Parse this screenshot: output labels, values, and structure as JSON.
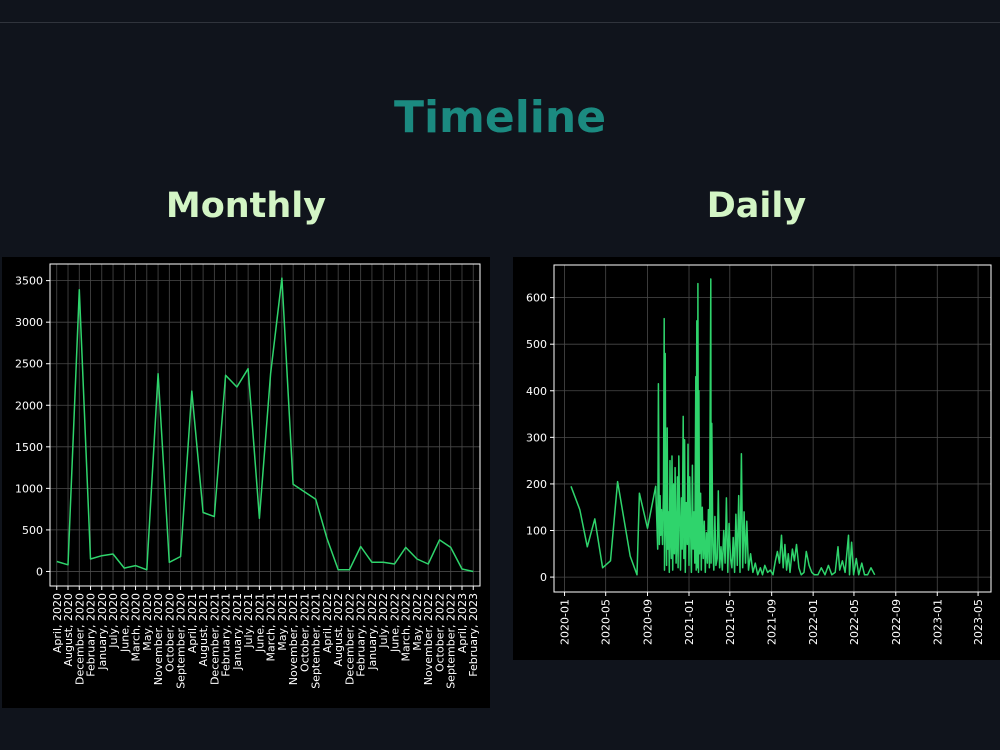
{
  "page": {
    "title": "Timeline",
    "colors": {
      "background": "#10141c",
      "title": "#1b8a80",
      "subtitle": "#d3f5c5",
      "line": "#2fd46c",
      "panel": "#000000"
    }
  },
  "monthly": {
    "title": "Monthly"
  },
  "daily": {
    "title": "Daily"
  },
  "chart_data": [
    {
      "type": "line",
      "categories": [
        "April, 2020",
        "August, 2020",
        "December, 2020",
        "February, 2020",
        "January, 2020",
        "July, 2020",
        "June, 2020",
        "March, 2020",
        "May, 2020",
        "November, 2020",
        "October, 2020",
        "September, 2020",
        "April, 2021",
        "August, 2021",
        "December, 2021",
        "February, 2021",
        "January, 2021",
        "July, 2021",
        "June, 2021",
        "March, 2021",
        "May, 2021",
        "November, 2021",
        "October, 2021",
        "September, 2021",
        "April, 2022",
        "August, 2022",
        "December, 2022",
        "February, 2022",
        "January, 2022",
        "July, 2022",
        "June, 2022",
        "March, 2022",
        "May, 2022",
        "November, 2022",
        "October, 2022",
        "September, 2022",
        "April, 2023",
        "February, 2023"
      ],
      "values": [
        120,
        80,
        3390,
        150,
        190,
        210,
        40,
        70,
        20,
        2380,
        110,
        180,
        2170,
        710,
        660,
        2360,
        2220,
        2440,
        640,
        2380,
        3530,
        1050,
        960,
        870,
        400,
        20,
        20,
        300,
        110,
        110,
        90,
        290,
        150,
        90,
        380,
        290,
        30,
        0
      ],
      "yticks": [
        0,
        500,
        1000,
        1500,
        2000,
        2500,
        3000,
        3500
      ],
      "ylim": [
        -175,
        3700
      ],
      "grid": true
    },
    {
      "type": "line",
      "xticks": [
        "2020-01",
        "2020-05",
        "2020-09",
        "2021-01",
        "2021-05",
        "2021-09",
        "2022-01",
        "2022-05",
        "2022-09",
        "2023-01",
        "2023-05"
      ],
      "yticks": [
        0,
        100,
        200,
        300,
        400,
        500,
        600
      ],
      "xlim": [
        "2019-12-01",
        "2023-06-08"
      ],
      "ylim": [
        -32,
        670
      ],
      "grid": true,
      "points": [
        [
          "2020-01-20",
          195
        ],
        [
          "2020-02-15",
          145
        ],
        [
          "2020-03-08",
          65
        ],
        [
          "2020-03-30",
          125
        ],
        [
          "2020-04-22",
          20
        ],
        [
          "2020-05-15",
          35
        ],
        [
          "2020-06-05",
          205
        ],
        [
          "2020-07-12",
          45
        ],
        [
          "2020-08-01",
          5
        ],
        [
          "2020-08-08",
          180
        ],
        [
          "2020-09-01",
          105
        ],
        [
          "2020-09-25",
          195
        ],
        [
          "2020-10-01",
          60
        ],
        [
          "2020-10-03",
          415
        ],
        [
          "2020-10-06",
          70
        ],
        [
          "2020-10-08",
          175
        ],
        [
          "2020-10-10",
          90
        ],
        [
          "2020-10-12",
          145
        ],
        [
          "2020-10-15",
          70
        ],
        [
          "2020-10-18",
          190
        ],
        [
          "2020-10-20",
          555
        ],
        [
          "2020-10-21",
          15
        ],
        [
          "2020-10-23",
          480
        ],
        [
          "2020-10-25",
          120
        ],
        [
          "2020-10-27",
          25
        ],
        [
          "2020-10-29",
          320
        ],
        [
          "2020-10-31",
          60
        ],
        [
          "2020-11-02",
          140
        ],
        [
          "2020-11-04",
          10
        ],
        [
          "2020-11-06",
          250
        ],
        [
          "2020-11-08",
          90
        ],
        [
          "2020-11-10",
          40
        ],
        [
          "2020-11-12",
          260
        ],
        [
          "2020-11-14",
          15
        ],
        [
          "2020-11-17",
          200
        ],
        [
          "2020-11-19",
          50
        ],
        [
          "2020-11-21",
          235
        ],
        [
          "2020-11-24",
          30
        ],
        [
          "2020-11-26",
          80
        ],
        [
          "2020-11-28",
          215
        ],
        [
          "2020-11-30",
          20
        ],
        [
          "2020-12-02",
          260
        ],
        [
          "2020-12-05",
          120
        ],
        [
          "2020-12-07",
          15
        ],
        [
          "2020-12-10",
          170
        ],
        [
          "2020-12-12",
          60
        ],
        [
          "2020-12-15",
          345
        ],
        [
          "2020-12-17",
          40
        ],
        [
          "2020-12-19",
          295
        ],
        [
          "2020-12-21",
          10
        ],
        [
          "2020-12-24",
          160
        ],
        [
          "2020-12-27",
          70
        ],
        [
          "2020-12-29",
          285
        ],
        [
          "2021-01-01",
          25
        ],
        [
          "2021-01-03",
          215
        ],
        [
          "2021-01-06",
          90
        ],
        [
          "2021-01-08",
          10
        ],
        [
          "2021-01-11",
          240
        ],
        [
          "2021-01-13",
          60
        ],
        [
          "2021-01-16",
          140
        ],
        [
          "2021-01-18",
          30
        ],
        [
          "2021-01-21",
          430
        ],
        [
          "2021-01-22",
          15
        ],
        [
          "2021-01-24",
          550
        ],
        [
          "2021-01-26",
          20
        ],
        [
          "2021-01-27",
          630
        ],
        [
          "2021-01-29",
          10
        ],
        [
          "2021-01-30",
          400
        ],
        [
          "2021-02-01",
          50
        ],
        [
          "2021-02-04",
          180
        ],
        [
          "2021-02-06",
          15
        ],
        [
          "2021-02-09",
          150
        ],
        [
          "2021-02-12",
          40
        ],
        [
          "2021-02-15",
          120
        ],
        [
          "2021-02-18",
          10
        ],
        [
          "2021-02-21",
          95
        ],
        [
          "2021-02-24",
          30
        ],
        [
          "2021-02-27",
          145
        ],
        [
          "2021-03-02",
          20
        ],
        [
          "2021-03-06",
          640
        ],
        [
          "2021-03-07",
          30
        ],
        [
          "2021-03-09",
          330
        ],
        [
          "2021-03-12",
          70
        ],
        [
          "2021-03-15",
          15
        ],
        [
          "2021-03-18",
          130
        ],
        [
          "2021-03-21",
          25
        ],
        [
          "2021-03-25",
          40
        ],
        [
          "2021-03-28",
          185
        ],
        [
          "2021-04-01",
          20
        ],
        [
          "2021-04-05",
          65
        ],
        [
          "2021-04-09",
          15
        ],
        [
          "2021-04-13",
          100
        ],
        [
          "2021-04-17",
          30
        ],
        [
          "2021-04-21",
          170
        ],
        [
          "2021-04-25",
          10
        ],
        [
          "2021-04-29",
          115
        ],
        [
          "2021-05-03",
          40
        ],
        [
          "2021-05-07",
          20
        ],
        [
          "2021-05-11",
          85
        ],
        [
          "2021-05-15",
          10
        ],
        [
          "2021-05-19",
          135
        ],
        [
          "2021-05-23",
          25
        ],
        [
          "2021-05-27",
          175
        ],
        [
          "2021-05-31",
          10
        ],
        [
          "2021-06-04",
          265
        ],
        [
          "2021-06-08",
          20
        ],
        [
          "2021-06-12",
          140
        ],
        [
          "2021-06-16",
          30
        ],
        [
          "2021-06-20",
          120
        ],
        [
          "2021-06-25",
          15
        ],
        [
          "2021-07-01",
          50
        ],
        [
          "2021-07-08",
          10
        ],
        [
          "2021-07-15",
          30
        ],
        [
          "2021-07-22",
          5
        ],
        [
          "2021-07-30",
          20
        ],
        [
          "2021-08-05",
          5
        ],
        [
          "2021-08-12",
          25
        ],
        [
          "2021-08-20",
          10
        ],
        [
          "2021-08-28",
          15
        ],
        [
          "2021-09-05",
          5
        ],
        [
          "2021-09-12",
          35
        ],
        [
          "2021-09-18",
          55
        ],
        [
          "2021-09-24",
          30
        ],
        [
          "2021-09-30",
          90
        ],
        [
          "2021-10-05",
          20
        ],
        [
          "2021-10-10",
          70
        ],
        [
          "2021-10-15",
          15
        ],
        [
          "2021-10-20",
          50
        ],
        [
          "2021-10-25",
          10
        ],
        [
          "2021-11-01",
          60
        ],
        [
          "2021-11-07",
          35
        ],
        [
          "2021-11-13",
          70
        ],
        [
          "2021-11-20",
          20
        ],
        [
          "2021-11-27",
          5
        ],
        [
          "2021-12-05",
          10
        ],
        [
          "2021-12-12",
          55
        ],
        [
          "2021-12-20",
          25
        ],
        [
          "2021-12-28",
          10
        ],
        [
          "2022-01-05",
          5
        ],
        [
          "2022-01-15",
          5
        ],
        [
          "2022-01-25",
          20
        ],
        [
          "2022-02-05",
          5
        ],
        [
          "2022-02-15",
          25
        ],
        [
          "2022-02-25",
          5
        ],
        [
          "2022-03-07",
          10
        ],
        [
          "2022-03-15",
          65
        ],
        [
          "2022-03-20",
          15
        ],
        [
          "2022-03-28",
          35
        ],
        [
          "2022-04-05",
          10
        ],
        [
          "2022-04-15",
          90
        ],
        [
          "2022-04-18",
          5
        ],
        [
          "2022-04-24",
          75
        ],
        [
          "2022-04-30",
          5
        ],
        [
          "2022-05-08",
          40
        ],
        [
          "2022-05-15",
          5
        ],
        [
          "2022-05-24",
          30
        ],
        [
          "2022-06-01",
          5
        ],
        [
          "2022-06-10",
          5
        ],
        [
          "2022-06-20",
          20
        ],
        [
          "2022-07-01",
          5
        ]
      ]
    }
  ]
}
